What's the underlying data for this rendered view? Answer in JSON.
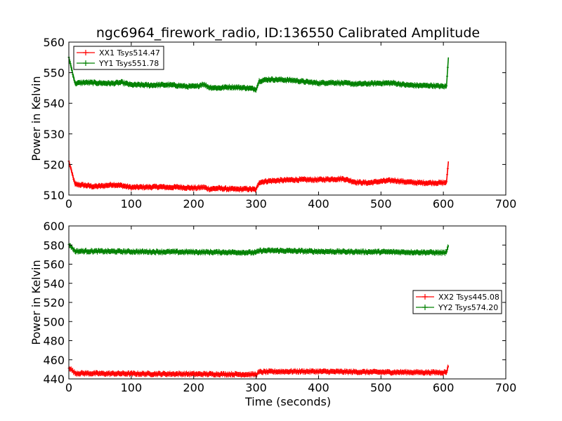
{
  "figure": {
    "title": "ngc6964_firework_radio, ID:136550 Calibrated Amplitude",
    "xlabel": "Time (seconds)"
  },
  "chart_data": [
    {
      "type": "line",
      "ylabel": "Power in Kelvin",
      "xlim": [
        0,
        700
      ],
      "ylim": [
        510,
        560
      ],
      "xticks": [
        "0",
        "100",
        "200",
        "300",
        "400",
        "500",
        "600",
        "700"
      ],
      "yticks": [
        "510",
        "520",
        "530",
        "540",
        "550",
        "560"
      ],
      "legend_position": "top-left",
      "series": [
        {
          "name": "XX1 Tsys514.47",
          "color": "#ff0000",
          "x": [
            0,
            10,
            25,
            40,
            55,
            70,
            85,
            100,
            115,
            130,
            145,
            160,
            175,
            190,
            205,
            215,
            225,
            240,
            255,
            270,
            285,
            300,
            305,
            320,
            340,
            360,
            380,
            400,
            420,
            440,
            460,
            480,
            500,
            520,
            540,
            560,
            580,
            600,
            605,
            608
          ],
          "y": [
            521,
            513.5,
            513.2,
            512.8,
            513.0,
            513.4,
            513.1,
            512.5,
            512.6,
            512.6,
            512.7,
            512.5,
            512.6,
            512.4,
            512.3,
            512.6,
            512.0,
            512.2,
            512.0,
            511.9,
            512.0,
            511.8,
            514.2,
            514.6,
            514.8,
            515.0,
            515.0,
            515.0,
            515.2,
            515.3,
            514.2,
            514.0,
            514.5,
            514.8,
            514.3,
            514.0,
            514.0,
            514.0,
            514.2,
            521
          ]
        },
        {
          "name": "YY1 Tsys551.78",
          "color": "#008000",
          "x": [
            0,
            10,
            25,
            40,
            55,
            70,
            85,
            100,
            115,
            130,
            145,
            160,
            175,
            190,
            205,
            215,
            225,
            240,
            255,
            270,
            285,
            300,
            305,
            320,
            340,
            360,
            380,
            400,
            420,
            440,
            460,
            480,
            500,
            520,
            540,
            560,
            580,
            600,
            605,
            608
          ],
          "y": [
            555,
            546.5,
            546.8,
            546.7,
            546.6,
            546.5,
            546.8,
            546.0,
            546.0,
            545.9,
            546.0,
            546.0,
            545.8,
            545.5,
            545.5,
            546.3,
            545.2,
            545.0,
            545.3,
            545.2,
            545.0,
            544.6,
            547.3,
            547.8,
            547.7,
            547.5,
            547.0,
            546.6,
            546.8,
            546.6,
            546.3,
            546.4,
            546.6,
            546.6,
            546.0,
            545.8,
            545.8,
            545.5,
            545.6,
            555
          ]
        }
      ]
    },
    {
      "type": "line",
      "ylabel": "Power in Kelvin",
      "xlabel": "Time (seconds)",
      "xlim": [
        0,
        700
      ],
      "ylim": [
        440,
        600
      ],
      "xticks": [
        "0",
        "100",
        "200",
        "300",
        "400",
        "500",
        "600",
        "700"
      ],
      "yticks": [
        "440",
        "460",
        "480",
        "500",
        "520",
        "540",
        "560",
        "580",
        "600"
      ],
      "legend_position": "center-right",
      "series": [
        {
          "name": "XX2 Tsys445.08",
          "color": "#ff0000",
          "x": [
            0,
            10,
            30,
            60,
            90,
            120,
            150,
            180,
            210,
            240,
            270,
            300,
            305,
            330,
            360,
            390,
            420,
            450,
            480,
            510,
            540,
            570,
            600,
            605,
            608
          ],
          "y": [
            452,
            446.0,
            445.8,
            445.5,
            445.5,
            445.3,
            445.2,
            445.2,
            445.0,
            445.0,
            444.8,
            444.6,
            447.2,
            447.6,
            447.8,
            447.8,
            447.6,
            447.4,
            447.2,
            447.0,
            447.0,
            446.8,
            446.8,
            447.0,
            454
          ]
        },
        {
          "name": "YY2 Tsys574.20",
          "color": "#008000",
          "x": [
            0,
            10,
            30,
            60,
            90,
            120,
            150,
            180,
            210,
            240,
            270,
            300,
            305,
            330,
            360,
            390,
            420,
            450,
            480,
            510,
            540,
            570,
            600,
            605,
            608
          ],
          "y": [
            581,
            573.5,
            573.6,
            573.4,
            573.2,
            573.0,
            572.9,
            572.8,
            572.6,
            572.5,
            572.4,
            572.1,
            574.0,
            574.2,
            573.8,
            573.4,
            573.2,
            573.0,
            572.9,
            572.8,
            572.6,
            572.4,
            572.0,
            572.3,
            580
          ]
        }
      ]
    }
  ]
}
